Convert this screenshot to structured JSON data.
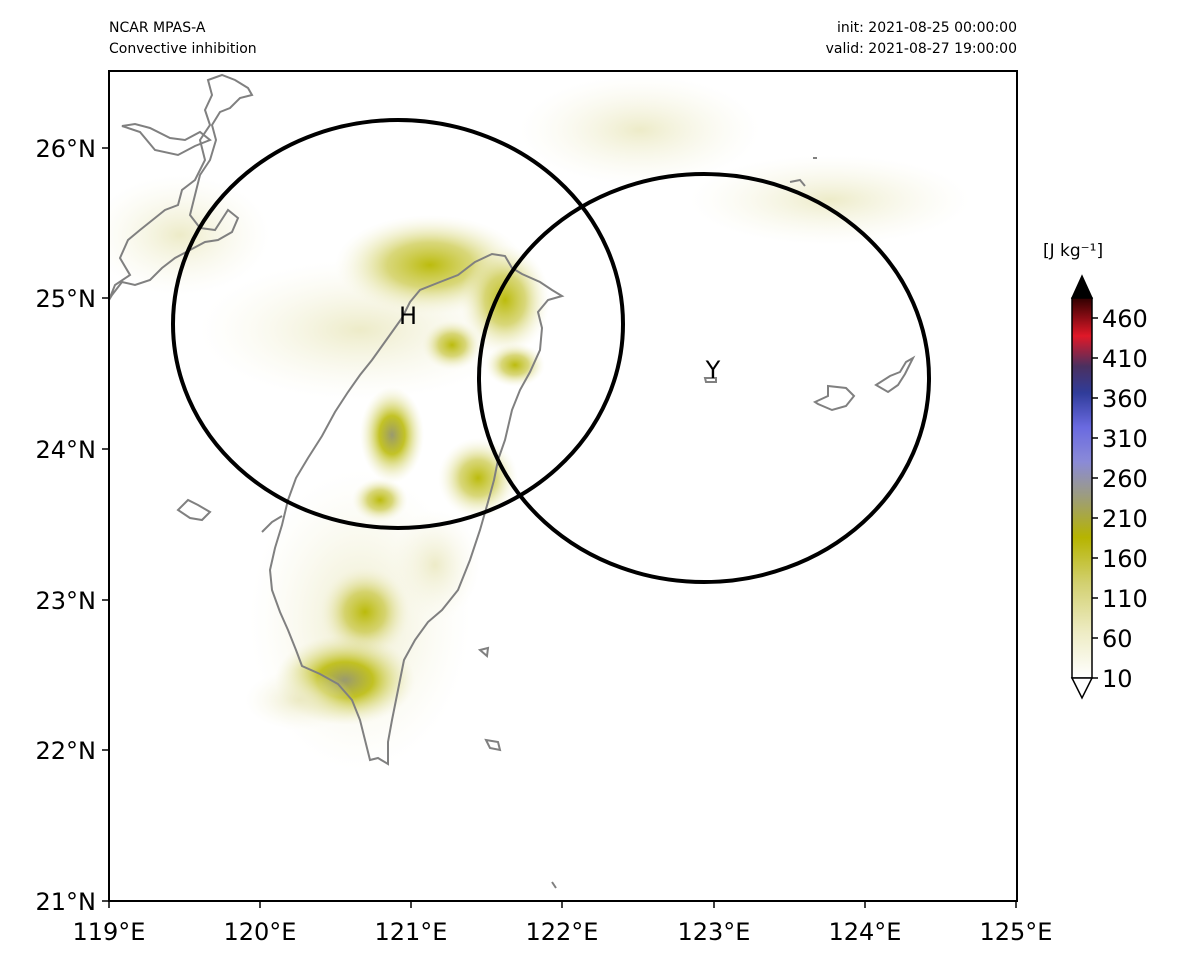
{
  "header": {
    "model": "NCAR MPAS-A",
    "field": "Convective inhibition",
    "init": "init: 2021-08-25 00:00:00",
    "valid": "valid: 2021-08-27 19:00:00"
  },
  "map": {
    "lon_range": [
      119,
      125
    ],
    "lat_range": [
      21,
      26.5
    ],
    "x_ticks": [
      "119°E",
      "120°E",
      "121°E",
      "122°E",
      "123°E",
      "124°E",
      "125°E"
    ],
    "y_ticks": [
      "21°N",
      "22°N",
      "23°N",
      "24°N",
      "25°N",
      "26°N"
    ],
    "coastline_color": "#808080"
  },
  "markers": [
    {
      "label": "H",
      "lon": 120.9,
      "lat": 24.83,
      "radius_deg_lat": 1.35
    },
    {
      "label": "Y",
      "lon": 122.95,
      "lat": 24.47,
      "radius_deg_lat": 1.35
    }
  ],
  "colorbar": {
    "unit": "[J kg⁻¹]",
    "ticks": [
      "10",
      "60",
      "110",
      "160",
      "210",
      "260",
      "310",
      "360",
      "410",
      "460"
    ],
    "colors": [
      "#ffffff",
      "#f0efcf",
      "#d8d680",
      "#bcbc00",
      "#a0a060",
      "#8c8cc8",
      "#7070ff",
      "#3040a0",
      "#e02030",
      "#000000"
    ]
  },
  "shading_color": "#bcbc00"
}
